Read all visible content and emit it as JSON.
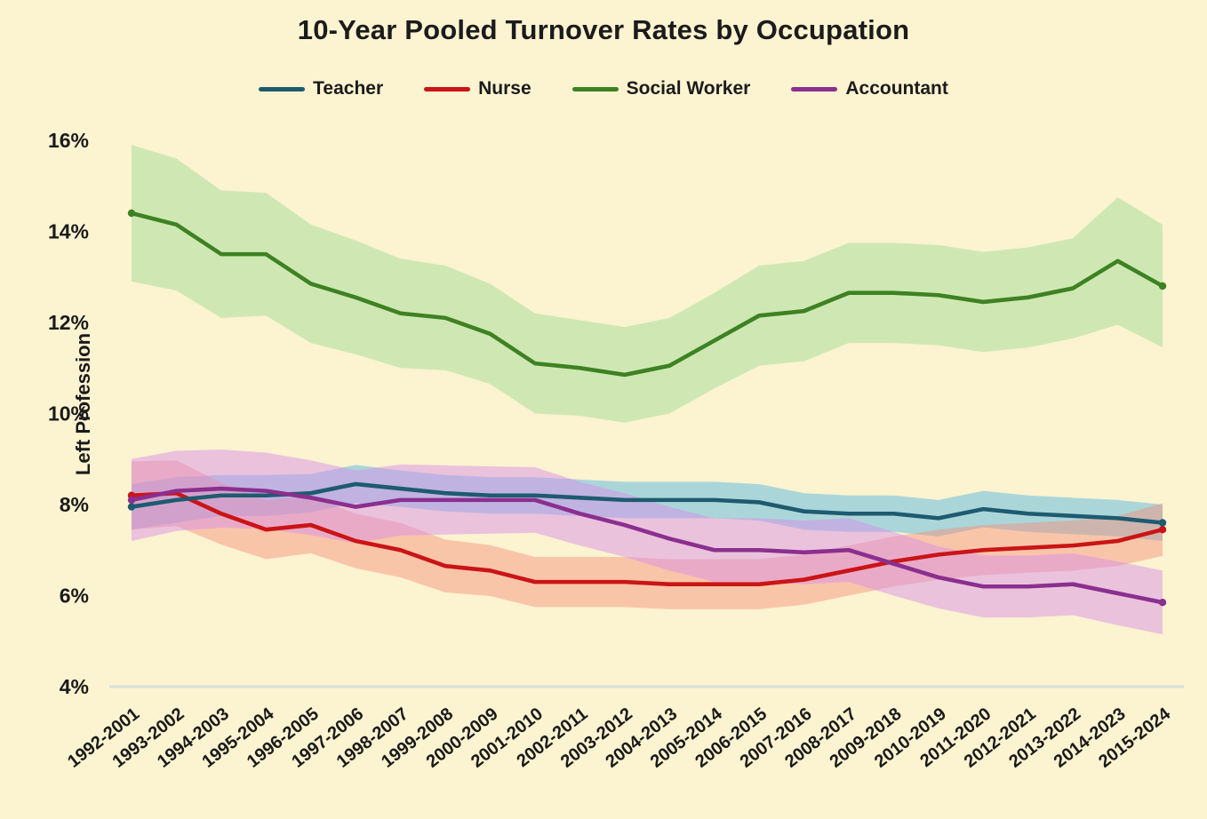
{
  "page": {
    "background_color": "#FCF3D0",
    "text_color": "#1B1B1B",
    "axis_line_color": "#DCDCDC"
  },
  "chart_data": {
    "type": "line",
    "title": "10-Year Pooled Turnover Rates by Occupation",
    "ylabel": "Left Profession",
    "xlabel": "",
    "legend_position": "top",
    "grid": "baseline-only",
    "ylim": [
      4,
      16.5
    ],
    "ytick_rotation": 0,
    "xtick_rotation": -38,
    "yticks": [
      {
        "value": 16,
        "label": "16%"
      },
      {
        "value": 14,
        "label": "14%"
      },
      {
        "value": 12,
        "label": "12%"
      },
      {
        "value": 10,
        "label": "10%"
      },
      {
        "value": 8,
        "label": "8%"
      },
      {
        "value": 6,
        "label": "6%"
      },
      {
        "value": 4,
        "label": "4%"
      }
    ],
    "categories": [
      "1992-2001",
      "1993-2002",
      "1994-2003",
      "1995-2004",
      "1996-2005",
      "1997-2006",
      "1998-2007",
      "1999-2008",
      "2000-2009",
      "2001-2010",
      "2002-2011",
      "2003-2012",
      "2004-2013",
      "2005-2014",
      "2006-2015",
      "2007-2016",
      "2008-2017",
      "2009-2018",
      "2010-2019",
      "2011-2020",
      "2012-2021",
      "2013-2022",
      "2014-2023",
      "2015-2024"
    ],
    "series": [
      {
        "name": "Teacher",
        "color": "#1E5B70",
        "band_color": "rgba(90,185,225,0.50)",
        "values": [
          7.95,
          8.1,
          8.2,
          8.2,
          8.25,
          8.45,
          8.35,
          8.25,
          8.2,
          8.2,
          8.15,
          8.1,
          8.1,
          8.1,
          8.05,
          7.85,
          7.8,
          7.8,
          7.7,
          7.9,
          7.8,
          7.75,
          7.7,
          7.6
        ],
        "ci_delta": [
          0.5,
          0.5,
          0.45,
          0.45,
          0.42,
          0.42,
          0.4,
          0.4,
          0.4,
          0.4,
          0.4,
          0.4,
          0.4,
          0.4,
          0.4,
          0.4,
          0.4,
          0.4,
          0.4,
          0.4,
          0.4,
          0.4,
          0.4,
          0.4
        ]
      },
      {
        "name": "Nurse",
        "color": "#CB1416",
        "band_color": "rgba(247,143,122,0.45)",
        "values": [
          8.2,
          8.25,
          7.8,
          7.45,
          7.55,
          7.2,
          7.0,
          6.65,
          6.55,
          6.3,
          6.3,
          6.3,
          6.25,
          6.25,
          6.25,
          6.35,
          6.55,
          6.75,
          6.9,
          7.0,
          7.05,
          7.1,
          7.2,
          7.45
        ],
        "ci_delta": [
          0.75,
          0.72,
          0.68,
          0.65,
          0.62,
          0.6,
          0.6,
          0.58,
          0.56,
          0.55,
          0.55,
          0.55,
          0.55,
          0.55,
          0.55,
          0.55,
          0.55,
          0.55,
          0.55,
          0.55,
          0.55,
          0.55,
          0.55,
          0.58
        ]
      },
      {
        "name": "Social Worker",
        "color": "#3E8223",
        "band_color": "rgba(162,221,149,0.50)",
        "values": [
          14.4,
          14.15,
          13.5,
          13.5,
          12.85,
          12.55,
          12.2,
          12.1,
          11.75,
          11.1,
          11.0,
          10.85,
          11.05,
          11.6,
          12.15,
          12.25,
          12.65,
          12.65,
          12.6,
          12.45,
          12.55,
          12.75,
          13.35,
          12.8
        ],
        "ci_delta": [
          1.5,
          1.45,
          1.4,
          1.35,
          1.3,
          1.25,
          1.2,
          1.15,
          1.1,
          1.1,
          1.05,
          1.05,
          1.05,
          1.05,
          1.1,
          1.1,
          1.1,
          1.1,
          1.1,
          1.1,
          1.1,
          1.1,
          1.4,
          1.35
        ]
      },
      {
        "name": "Accountant",
        "color": "#8B2F8F",
        "band_color": "rgba(216,140,235,0.48)",
        "values": [
          8.1,
          8.3,
          8.35,
          8.3,
          8.15,
          7.95,
          8.1,
          8.1,
          8.1,
          8.1,
          7.8,
          7.55,
          7.25,
          7.0,
          7.0,
          6.95,
          7.0,
          6.7,
          6.4,
          6.2,
          6.2,
          6.25,
          6.05,
          5.85
        ],
        "ci_delta": [
          0.9,
          0.88,
          0.86,
          0.84,
          0.82,
          0.8,
          0.78,
          0.76,
          0.74,
          0.72,
          0.7,
          0.7,
          0.7,
          0.7,
          0.7,
          0.7,
          0.7,
          0.7,
          0.68,
          0.68,
          0.68,
          0.68,
          0.7,
          0.7
        ]
      }
    ]
  }
}
